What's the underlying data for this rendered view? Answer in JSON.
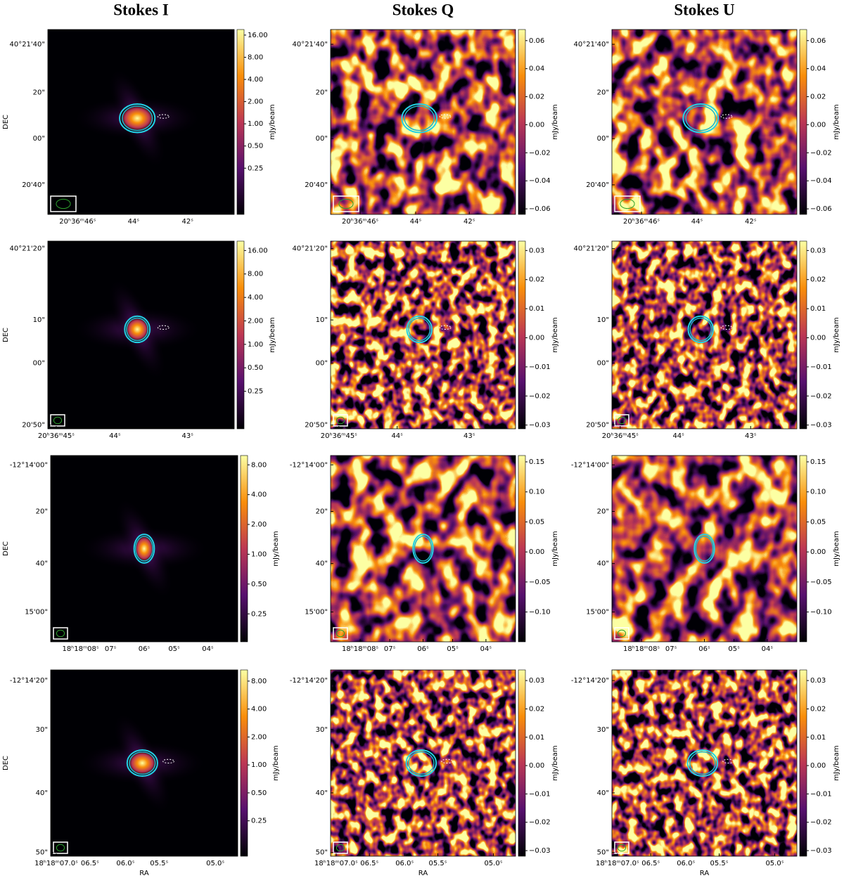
{
  "column_titles": [
    "Stokes I",
    "Stokes Q",
    "Stokes U"
  ],
  "y_axis_label": "DEC",
  "x_axis_label": "RA",
  "colorbar_label": "mJy/beam",
  "rows": [
    {
      "y_tick_labels": [
        "40°21'40\"",
        "20\"",
        "00\"",
        "20'40\""
      ],
      "x_tick_labels": [
        "20ʰ36ᵐ46ˢ",
        "44ˢ",
        "42ˢ"
      ],
      "colorbar_tick_labels": [
        [
          "16.00",
          "8.00",
          "4.00",
          "2.00",
          "1.00",
          "0.50",
          "0.25"
        ],
        [
          "0.06",
          "0.04",
          "0.02",
          "0.00",
          "−0.02",
          "−0.04",
          "−0.06"
        ],
        [
          "0.06",
          "0.04",
          "0.02",
          "0.00",
          "−0.02",
          "−0.04",
          "−0.06"
        ]
      ]
    },
    {
      "y_tick_labels": [
        "40°21'20\"",
        "10\"",
        "00\"",
        "20'50\""
      ],
      "x_tick_labels": [
        "20ʰ36ᵐ45ˢ",
        "44ˢ",
        "43ˢ"
      ],
      "colorbar_tick_labels": [
        [
          "16.00",
          "8.00",
          "4.00",
          "2.00",
          "1.00",
          "0.50",
          "0.25"
        ],
        [
          "0.03",
          "0.02",
          "0.01",
          "0.00",
          "−0.01",
          "−0.02",
          "−0.03"
        ],
        [
          "0.03",
          "0.02",
          "0.01",
          "0.00",
          "−0.01",
          "−0.02",
          "−0.03"
        ]
      ]
    },
    {
      "y_tick_labels": [
        "-12°14'00\"",
        "20\"",
        "40\"",
        "15'00\""
      ],
      "x_tick_labels": [
        "18ʰ18ᵐ08ˢ",
        "07ˢ",
        "06ˢ",
        "05ˢ",
        "04ˢ"
      ],
      "colorbar_tick_labels": [
        [
          "8.00",
          "4.00",
          "2.00",
          "1.00",
          "0.50",
          "0.25"
        ],
        [
          "0.15",
          "0.10",
          "0.05",
          "0.00",
          "−0.05",
          "−0.10"
        ],
        [
          "0.15",
          "0.10",
          "0.05",
          "0.00",
          "−0.05",
          "−0.10"
        ]
      ]
    },
    {
      "y_tick_labels": [
        "-12°14'20\"",
        "30\"",
        "40\"",
        "50\""
      ],
      "x_tick_labels": [
        "18ʰ18ᵐ07.0ˢ",
        "06.5ˢ",
        "06.0ˢ",
        "05.5ˢ",
        "05.0ˢ"
      ],
      "colorbar_tick_labels": [
        [
          "8.00",
          "4.00",
          "2.00",
          "1.00",
          "0.50",
          "0.25"
        ],
        [
          "0.03",
          "0.02",
          "0.01",
          "0.00",
          "−0.01",
          "−0.02",
          "−0.03"
        ],
        [
          "0.03",
          "0.02",
          "0.01",
          "0.00",
          "−0.01",
          "−0.02",
          "−0.03"
        ]
      ]
    }
  ]
}
